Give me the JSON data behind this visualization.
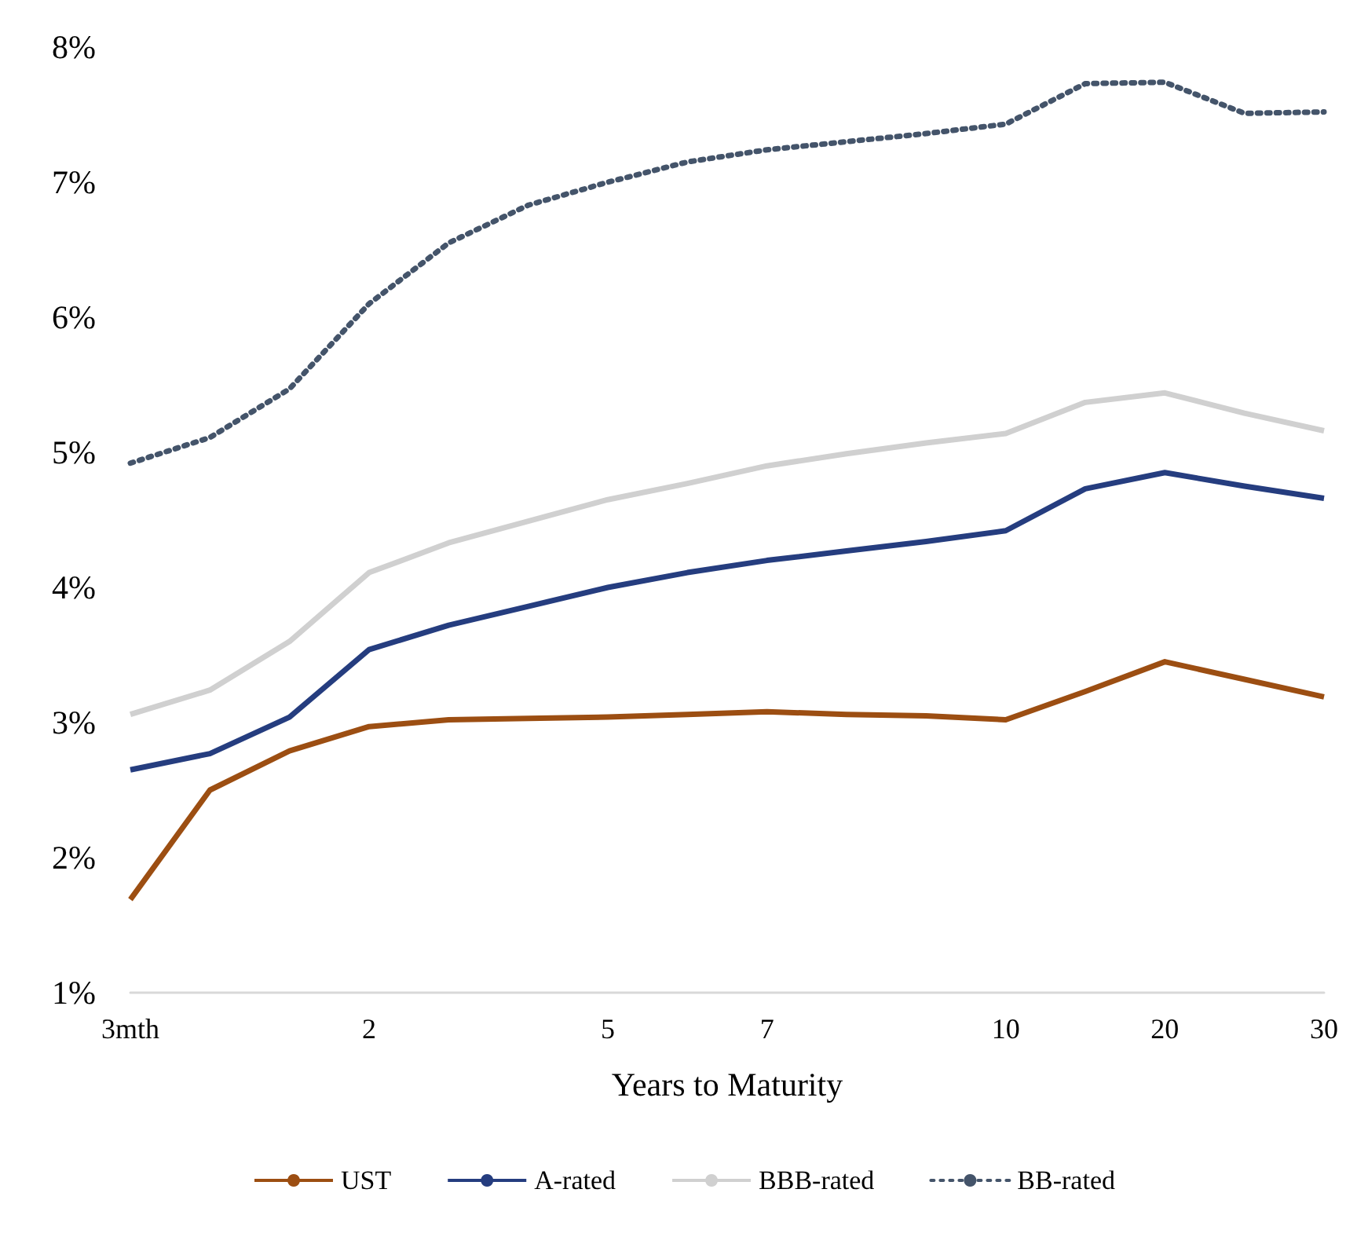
{
  "chart_data": {
    "type": "line",
    "xlabel": "Years to Maturity",
    "categories": [
      "3mth",
      null,
      null,
      "2",
      null,
      null,
      "5",
      null,
      "7",
      null,
      null,
      "10",
      null,
      "20",
      null,
      "30"
    ],
    "series": [
      {
        "name": "UST",
        "color": "#9c4e12",
        "line_style": "solid",
        "values": [
          1.69,
          2.5,
          2.79,
          2.97,
          3.02,
          3.03,
          3.04,
          3.06,
          3.08,
          3.06,
          3.05,
          3.02,
          3.23,
          3.45,
          3.32,
          3.19
        ]
      },
      {
        "name": "A-rated",
        "color": "#253d7f",
        "line_style": "solid",
        "values": [
          2.65,
          2.77,
          3.04,
          3.54,
          3.72,
          3.86,
          4.0,
          4.11,
          4.2,
          4.27,
          4.34,
          4.42,
          4.73,
          4.85,
          4.75,
          4.66
        ]
      },
      {
        "name": "BBB-rated",
        "color": "#d0d0d0",
        "line_style": "solid",
        "values": [
          3.06,
          3.24,
          3.6,
          4.11,
          4.33,
          4.49,
          4.65,
          4.77,
          4.9,
          4.99,
          5.07,
          5.14,
          5.37,
          5.44,
          5.29,
          5.16
        ]
      },
      {
        "name": "BB-rated",
        "color": "#44546a",
        "line_style": "dotted",
        "values": [
          4.92,
          5.11,
          5.47,
          6.1,
          6.55,
          6.83,
          7.0,
          7.15,
          7.24,
          7.3,
          7.36,
          7.43,
          7.73,
          7.74,
          7.51,
          7.52
        ]
      }
    ],
    "ylim": [
      1,
      8
    ],
    "yticks": [
      {
        "value": 1,
        "label": "1%"
      },
      {
        "value": 2,
        "label": "2%"
      },
      {
        "value": 3,
        "label": "3%"
      },
      {
        "value": 4,
        "label": "4%"
      },
      {
        "value": 5,
        "label": "5%"
      },
      {
        "value": 6,
        "label": "6%"
      },
      {
        "value": 7,
        "label": "7%"
      },
      {
        "value": 8,
        "label": "8%"
      }
    ],
    "grid": false,
    "legend": "bottom",
    "marker": "none"
  }
}
